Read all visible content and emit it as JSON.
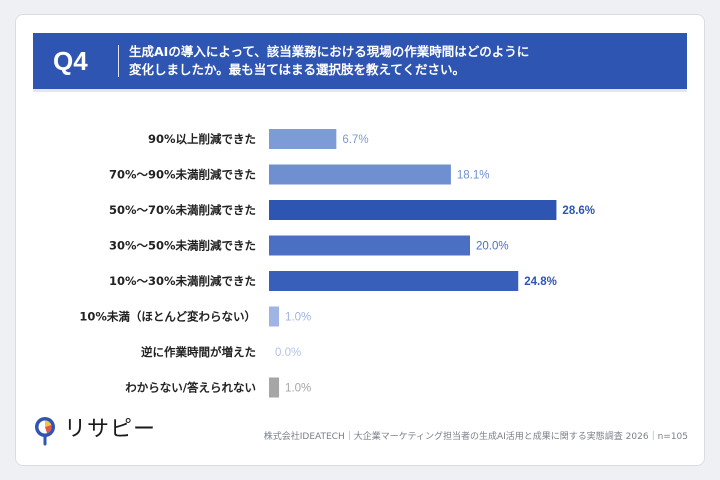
{
  "question": {
    "number": "Q4",
    "line1": "生成AIの導入によって、該当業務における現場の作業時間はどのように",
    "line2": "変化しましたか。最も当てはまる選択肢を教えてください。"
  },
  "chart_data": {
    "type": "bar",
    "orientation": "horizontal",
    "categories": [
      "90%以上削減できた",
      "70%～90%未満削減できた",
      "50%～70%未満削減できた",
      "30%～50%未満削減できた",
      "10%～30%未満削減できた",
      "10%未満（ほとんど変わらない）",
      "逆に作業時間が増えた",
      "わからない/答えられない"
    ],
    "values": [
      6.7,
      18.1,
      28.6,
      20.0,
      24.8,
      1.0,
      0.0,
      1.0
    ],
    "labels": [
      "6.7%",
      "18.1%",
      "28.6%",
      "20.0%",
      "24.8%",
      "1.0%",
      "0.0%",
      "1.0%"
    ],
    "colors": [
      "#7d9bd6",
      "#6f8fd1",
      "#2f55b3",
      "#4b6fc3",
      "#3860bb",
      "#9fb4e2",
      "#9fb4e2",
      "#a6a6a6"
    ],
    "label_colors": [
      "#7d9bd6",
      "#6f8fd1",
      "#2f55b3",
      "#4b6fc3",
      "#2f55b3",
      "#9fb4e2",
      "#b3c3e8",
      "#a6a6a6"
    ],
    "xlim": [
      0,
      30
    ],
    "grid": false
  },
  "footer": {
    "source": "株式会社IDEATECH｜大企業マーケティング担当者の生成AI活用と成果に関する実態調査 2026｜n=105"
  },
  "logo": {
    "text": "リサピー",
    "icon": "rissapy-logo-icon"
  }
}
